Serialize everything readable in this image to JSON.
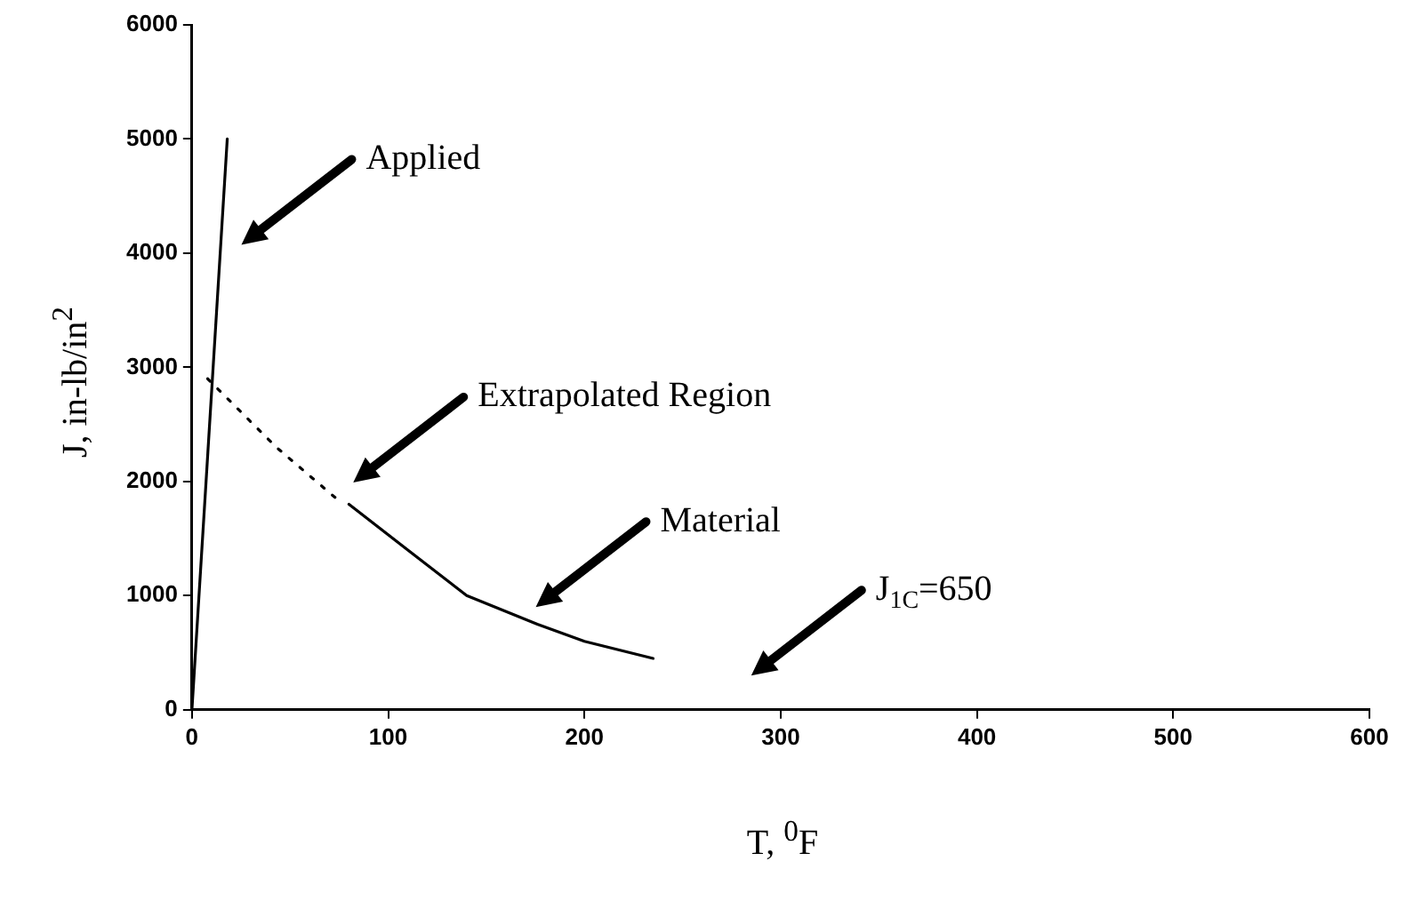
{
  "chart_data": {
    "type": "line",
    "xlabel": "T, $^{0}$F",
    "ylabel": "J, in-lb/in$^{2}$",
    "xlim": [
      0,
      600
    ],
    "ylim": [
      0,
      6000
    ],
    "xticks": [
      0,
      100,
      200,
      300,
      400,
      500,
      600
    ],
    "yticks": [
      0,
      1000,
      2000,
      3000,
      4000,
      5000,
      6000
    ],
    "grid": false,
    "legend": false,
    "marker": "none",
    "series": [
      {
        "color": "#000000",
        "line_style": "solid",
        "x": [
          0,
          18
        ],
        "values": [
          0,
          5000
        ]
      },
      {
        "color": "#000000",
        "line_style": "dotted",
        "x": [
          8,
          43,
          77
        ],
        "values": [
          2900,
          2300,
          1800
        ]
      },
      {
        "color": "#000000",
        "line_style": "solid",
        "x": [
          80,
          110,
          140,
          176,
          200,
          235
        ],
        "values": [
          1800,
          1400,
          1000,
          750,
          600,
          450
        ]
      }
    ],
    "annotations": [
      "Applied",
      "Extrapolated Region",
      "Material",
      "J$_{1C}$=650"
    ]
  }
}
